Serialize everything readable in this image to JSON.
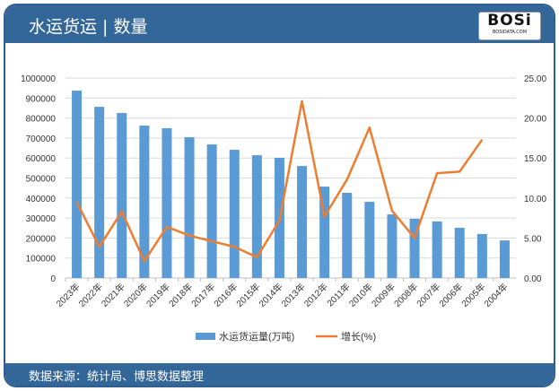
{
  "header": {
    "title": "水运货运 | 数量",
    "logo_text": "BOSi",
    "logo_subtext": "BOSIDATA.COM"
  },
  "footer": {
    "source": "数据来源：统计局、博思数据整理"
  },
  "colors": {
    "frame": "#336699",
    "bar": "#5b9bd5",
    "line": "#ed7d31"
  },
  "chart_data": {
    "type": "bar+line",
    "categories": [
      "2023年",
      "2022年",
      "2021年",
      "2020年",
      "2019年",
      "2018年",
      "2017年",
      "2016年",
      "2015年",
      "2014年",
      "2013年",
      "2012年",
      "2011年",
      "2010年",
      "2009年",
      "2008年",
      "2007年",
      "2006年",
      "2005年",
      "2004年"
    ],
    "series": [
      {
        "name": "水运货运量(万吨)",
        "type": "bar",
        "axis": "left",
        "values": [
          937000,
          856000,
          825000,
          762000,
          749000,
          704000,
          668000,
          641000,
          614000,
          601000,
          560000,
          457000,
          426000,
          381000,
          318000,
          296000,
          283000,
          251000,
          220000,
          188000
        ]
      },
      {
        "name": "增长(%)",
        "type": "line",
        "axis": "right",
        "values": [
          9.5,
          3.9,
          8.3,
          2.1,
          6.4,
          5.3,
          4.6,
          3.9,
          2.6,
          7.2,
          22.1,
          7.7,
          12.3,
          18.8,
          8.4,
          5.0,
          13.1,
          13.3,
          17.3,
          null
        ]
      }
    ],
    "ylim_left": [
      0,
      1000000
    ],
    "yticks_left": [
      "0",
      "100000",
      "200000",
      "300000",
      "400000",
      "500000",
      "600000",
      "700000",
      "800000",
      "900000",
      "1000000"
    ],
    "ylim_right": [
      0,
      25
    ],
    "yticks_right": [
      "0.00",
      "5.00",
      "10.00",
      "15.00",
      "20.00",
      "25.00"
    ],
    "grid": true,
    "legend": "bottom"
  }
}
